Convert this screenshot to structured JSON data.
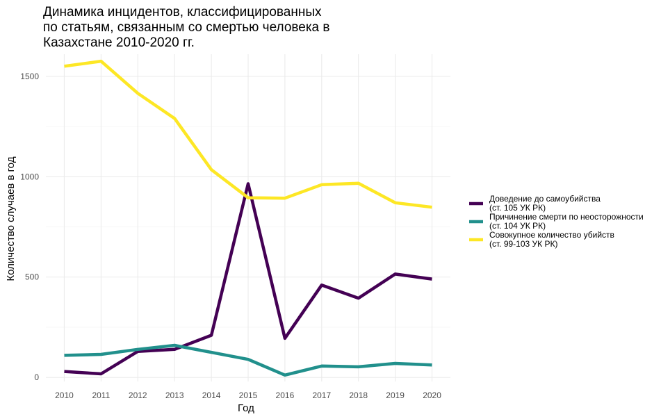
{
  "chart_data": {
    "type": "line",
    "title": [
      "Динамика инцидентов, классифицированных",
      "по статьям, связанным со смертью человека в",
      "Казахстане 2010-2020 гг."
    ],
    "xlabel": "Год",
    "ylabel": "Количество случаев в год",
    "x": [
      2010,
      2011,
      2012,
      2013,
      2014,
      2015,
      2016,
      2017,
      2018,
      2019,
      2020
    ],
    "x_tick_labels": [
      "2010",
      "2011",
      "2012",
      "2013",
      "2014",
      "2015",
      "2016",
      "2017",
      "2018",
      "2019",
      "2020"
    ],
    "y_ticks": [
      0,
      500,
      1000,
      1500
    ],
    "y_tick_labels": [
      "0",
      "500",
      "1000",
      "1500"
    ],
    "ylim": [
      -20,
      1610
    ],
    "grid": true,
    "legend_position": "right",
    "series": [
      {
        "name": "Доведение до самоубийства (ст. 105 УК РК)",
        "legend_lines": [
          "Доведение до самоубийства",
          "(ст. 105  УК РК)"
        ],
        "color": "#440154",
        "values": [
          30,
          18,
          130,
          140,
          210,
          965,
          195,
          460,
          395,
          515,
          490
        ]
      },
      {
        "name": "Причинение смерти по неосторожности (ст. 104 УК РК)",
        "legend_lines": [
          "Причинение смерти по неосторожности",
          "(ст. 104  УК РК)"
        ],
        "color": "#21908C",
        "values": [
          110,
          115,
          140,
          160,
          125,
          90,
          12,
          57,
          53,
          70,
          62
        ]
      },
      {
        "name": "Совокупное количество убийств (ст. 99-103 УК РК)",
        "legend_lines": [
          "Совокупное количество убийств",
          "(ст. 99-103 УК РК)"
        ],
        "color": "#FDE725",
        "values": [
          1550,
          1575,
          1415,
          1290,
          1035,
          895,
          893,
          960,
          967,
          870,
          848
        ]
      }
    ]
  }
}
